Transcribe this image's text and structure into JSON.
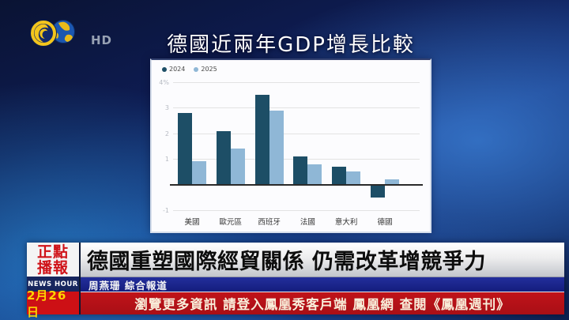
{
  "header": {
    "hd_label": "HD",
    "logo": "phoenix-tv-logo"
  },
  "chart_data": {
    "type": "bar",
    "title": "德國近兩年GDP增長比較",
    "categories": [
      "美國",
      "歐元區",
      "西班牙",
      "法國",
      "意大利",
      "德國"
    ],
    "series": [
      {
        "name": "2024",
        "color": "#1d4e66",
        "values": [
          2.8,
          2.1,
          3.5,
          1.1,
          0.7,
          -0.5
        ]
      },
      {
        "name": "2025",
        "color": "#8fb7d6",
        "values": [
          0.9,
          1.4,
          2.9,
          0.8,
          0.5,
          0.2
        ]
      }
    ],
    "ylabel": "",
    "xlabel": "",
    "ylim": [
      -1,
      4
    ],
    "yticks": [
      {
        "value": 4,
        "label": "4%"
      },
      {
        "value": 3,
        "label": "3"
      },
      {
        "value": 2,
        "label": "2"
      },
      {
        "value": 1,
        "label": "1"
      },
      {
        "value": -1,
        "label": "-1"
      }
    ],
    "grid": true,
    "legend_position": "top-left"
  },
  "banner": {
    "program_name_line1": "正點",
    "program_name_line2": "播報",
    "program_subtitle": "NEWS HOUR",
    "date": "2月26日",
    "headline": "德國重塑國際經貿關係 仍需改革增競爭力",
    "byline": "周燕珊 綜合報道",
    "ticker": "瀏覽更多資訊 請登入鳳凰秀客戶端 鳳凰網 查閱《鳳凰週刊》"
  },
  "colors": {
    "series_2024": "#1d4e66",
    "series_2025": "#8fb7d6",
    "banner_red": "#b01217",
    "banner_blue": "#18208f",
    "program_red": "#cf1218",
    "date_yellow": "#ffd400",
    "background_blue": "#17357f"
  }
}
